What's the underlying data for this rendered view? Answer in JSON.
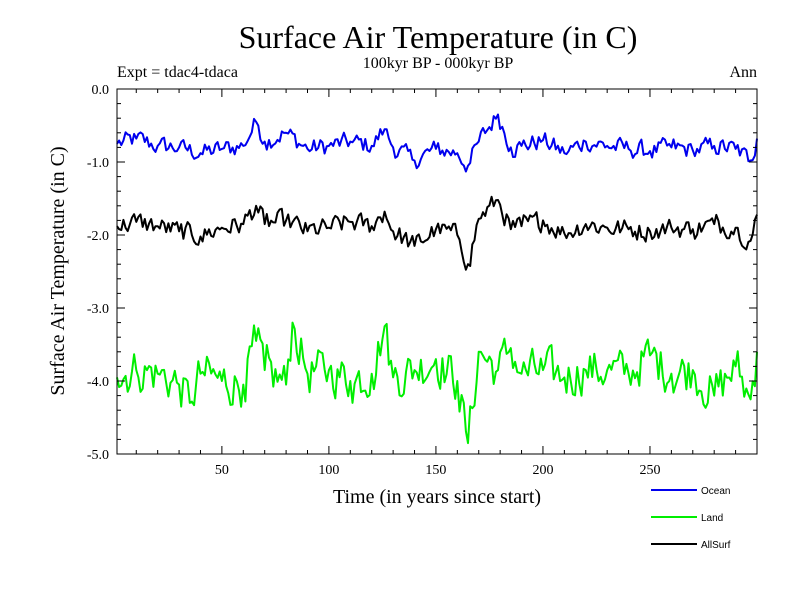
{
  "chart_data": {
    "type": "line",
    "title": "Surface Air Temperature (in C)",
    "subtitle": "100kyr BP - 000kyr BP",
    "experiment_label": "Expt = tdac4-tdaca",
    "season_label": "Ann",
    "xlabel": "Time (in years since start)",
    "ylabel": "Surface Air Temperature (in C)",
    "xlim": [
      1,
      300
    ],
    "ylim": [
      -5.0,
      0.0
    ],
    "xticks": [
      50,
      100,
      150,
      200,
      250
    ],
    "xtick_labels": [
      "50",
      "100",
      "150",
      "200",
      "250"
    ],
    "yticks": [
      0.0,
      -1.0,
      -2.0,
      -3.0,
      -4.0,
      -5.0
    ],
    "ytick_labels": [
      "0.0",
      "-1.0",
      "-2.0",
      "-3.0",
      "-4.0",
      "-5.0"
    ],
    "grid": false,
    "legend_position": "bottom-right",
    "series": [
      {
        "name": "Ocean",
        "color": "#0000ee",
        "x": [
          1,
          10,
          20,
          30,
          40,
          50,
          60,
          66,
          70,
          80,
          90,
          100,
          110,
          120,
          126,
          130,
          140,
          150,
          160,
          165,
          170,
          179,
          185,
          190,
          200,
          210,
          220,
          230,
          240,
          250,
          260,
          270,
          280,
          290,
          297,
          300
        ],
        "values": [
          -0.75,
          -0.68,
          -0.78,
          -0.8,
          -0.88,
          -0.82,
          -0.78,
          -0.45,
          -0.72,
          -0.6,
          -0.82,
          -0.78,
          -0.72,
          -0.78,
          -0.55,
          -0.8,
          -0.98,
          -0.82,
          -0.88,
          -1.05,
          -0.72,
          -0.35,
          -0.8,
          -0.78,
          -0.7,
          -0.88,
          -0.72,
          -0.78,
          -0.82,
          -0.85,
          -0.8,
          -0.84,
          -0.78,
          -0.82,
          -0.98,
          -0.68
        ]
      },
      {
        "name": "Land",
        "color": "#00ee00",
        "x": [
          1,
          10,
          20,
          30,
          35,
          40,
          50,
          60,
          66,
          70,
          80,
          83,
          90,
          100,
          110,
          120,
          126,
          130,
          140,
          150,
          160,
          165,
          170,
          179,
          185,
          190,
          200,
          210,
          220,
          230,
          240,
          250,
          260,
          270,
          280,
          290,
          297,
          300
        ],
        "values": [
          -3.95,
          -3.85,
          -3.9,
          -4.05,
          -4.3,
          -3.9,
          -4.0,
          -4.05,
          -3.45,
          -3.85,
          -4.05,
          -3.2,
          -3.9,
          -3.85,
          -4.0,
          -3.9,
          -3.25,
          -3.95,
          -3.85,
          -3.7,
          -4.0,
          -4.85,
          -3.6,
          -3.85,
          -3.55,
          -3.9,
          -3.85,
          -3.95,
          -3.85,
          -3.85,
          -3.9,
          -3.65,
          -3.9,
          -3.85,
          -4.2,
          -3.8,
          -4.25,
          -3.6
        ]
      },
      {
        "name": "AllSurf",
        "color": "#000000",
        "x": [
          1,
          10,
          20,
          30,
          40,
          50,
          60,
          66,
          70,
          80,
          90,
          100,
          110,
          120,
          126,
          130,
          140,
          150,
          160,
          165,
          170,
          179,
          185,
          190,
          200,
          210,
          220,
          230,
          240,
          250,
          260,
          270,
          280,
          290,
          297,
          300
        ],
        "values": [
          -1.88,
          -1.82,
          -1.88,
          -1.95,
          -2.02,
          -1.9,
          -1.85,
          -1.6,
          -1.85,
          -1.8,
          -1.95,
          -1.9,
          -1.82,
          -1.88,
          -1.68,
          -1.95,
          -2.15,
          -1.92,
          -2.0,
          -2.4,
          -1.78,
          -1.52,
          -1.92,
          -1.88,
          -1.8,
          -1.98,
          -1.85,
          -1.9,
          -1.92,
          -1.95,
          -1.9,
          -1.92,
          -1.85,
          -1.9,
          -2.08,
          -1.72
        ]
      }
    ]
  }
}
